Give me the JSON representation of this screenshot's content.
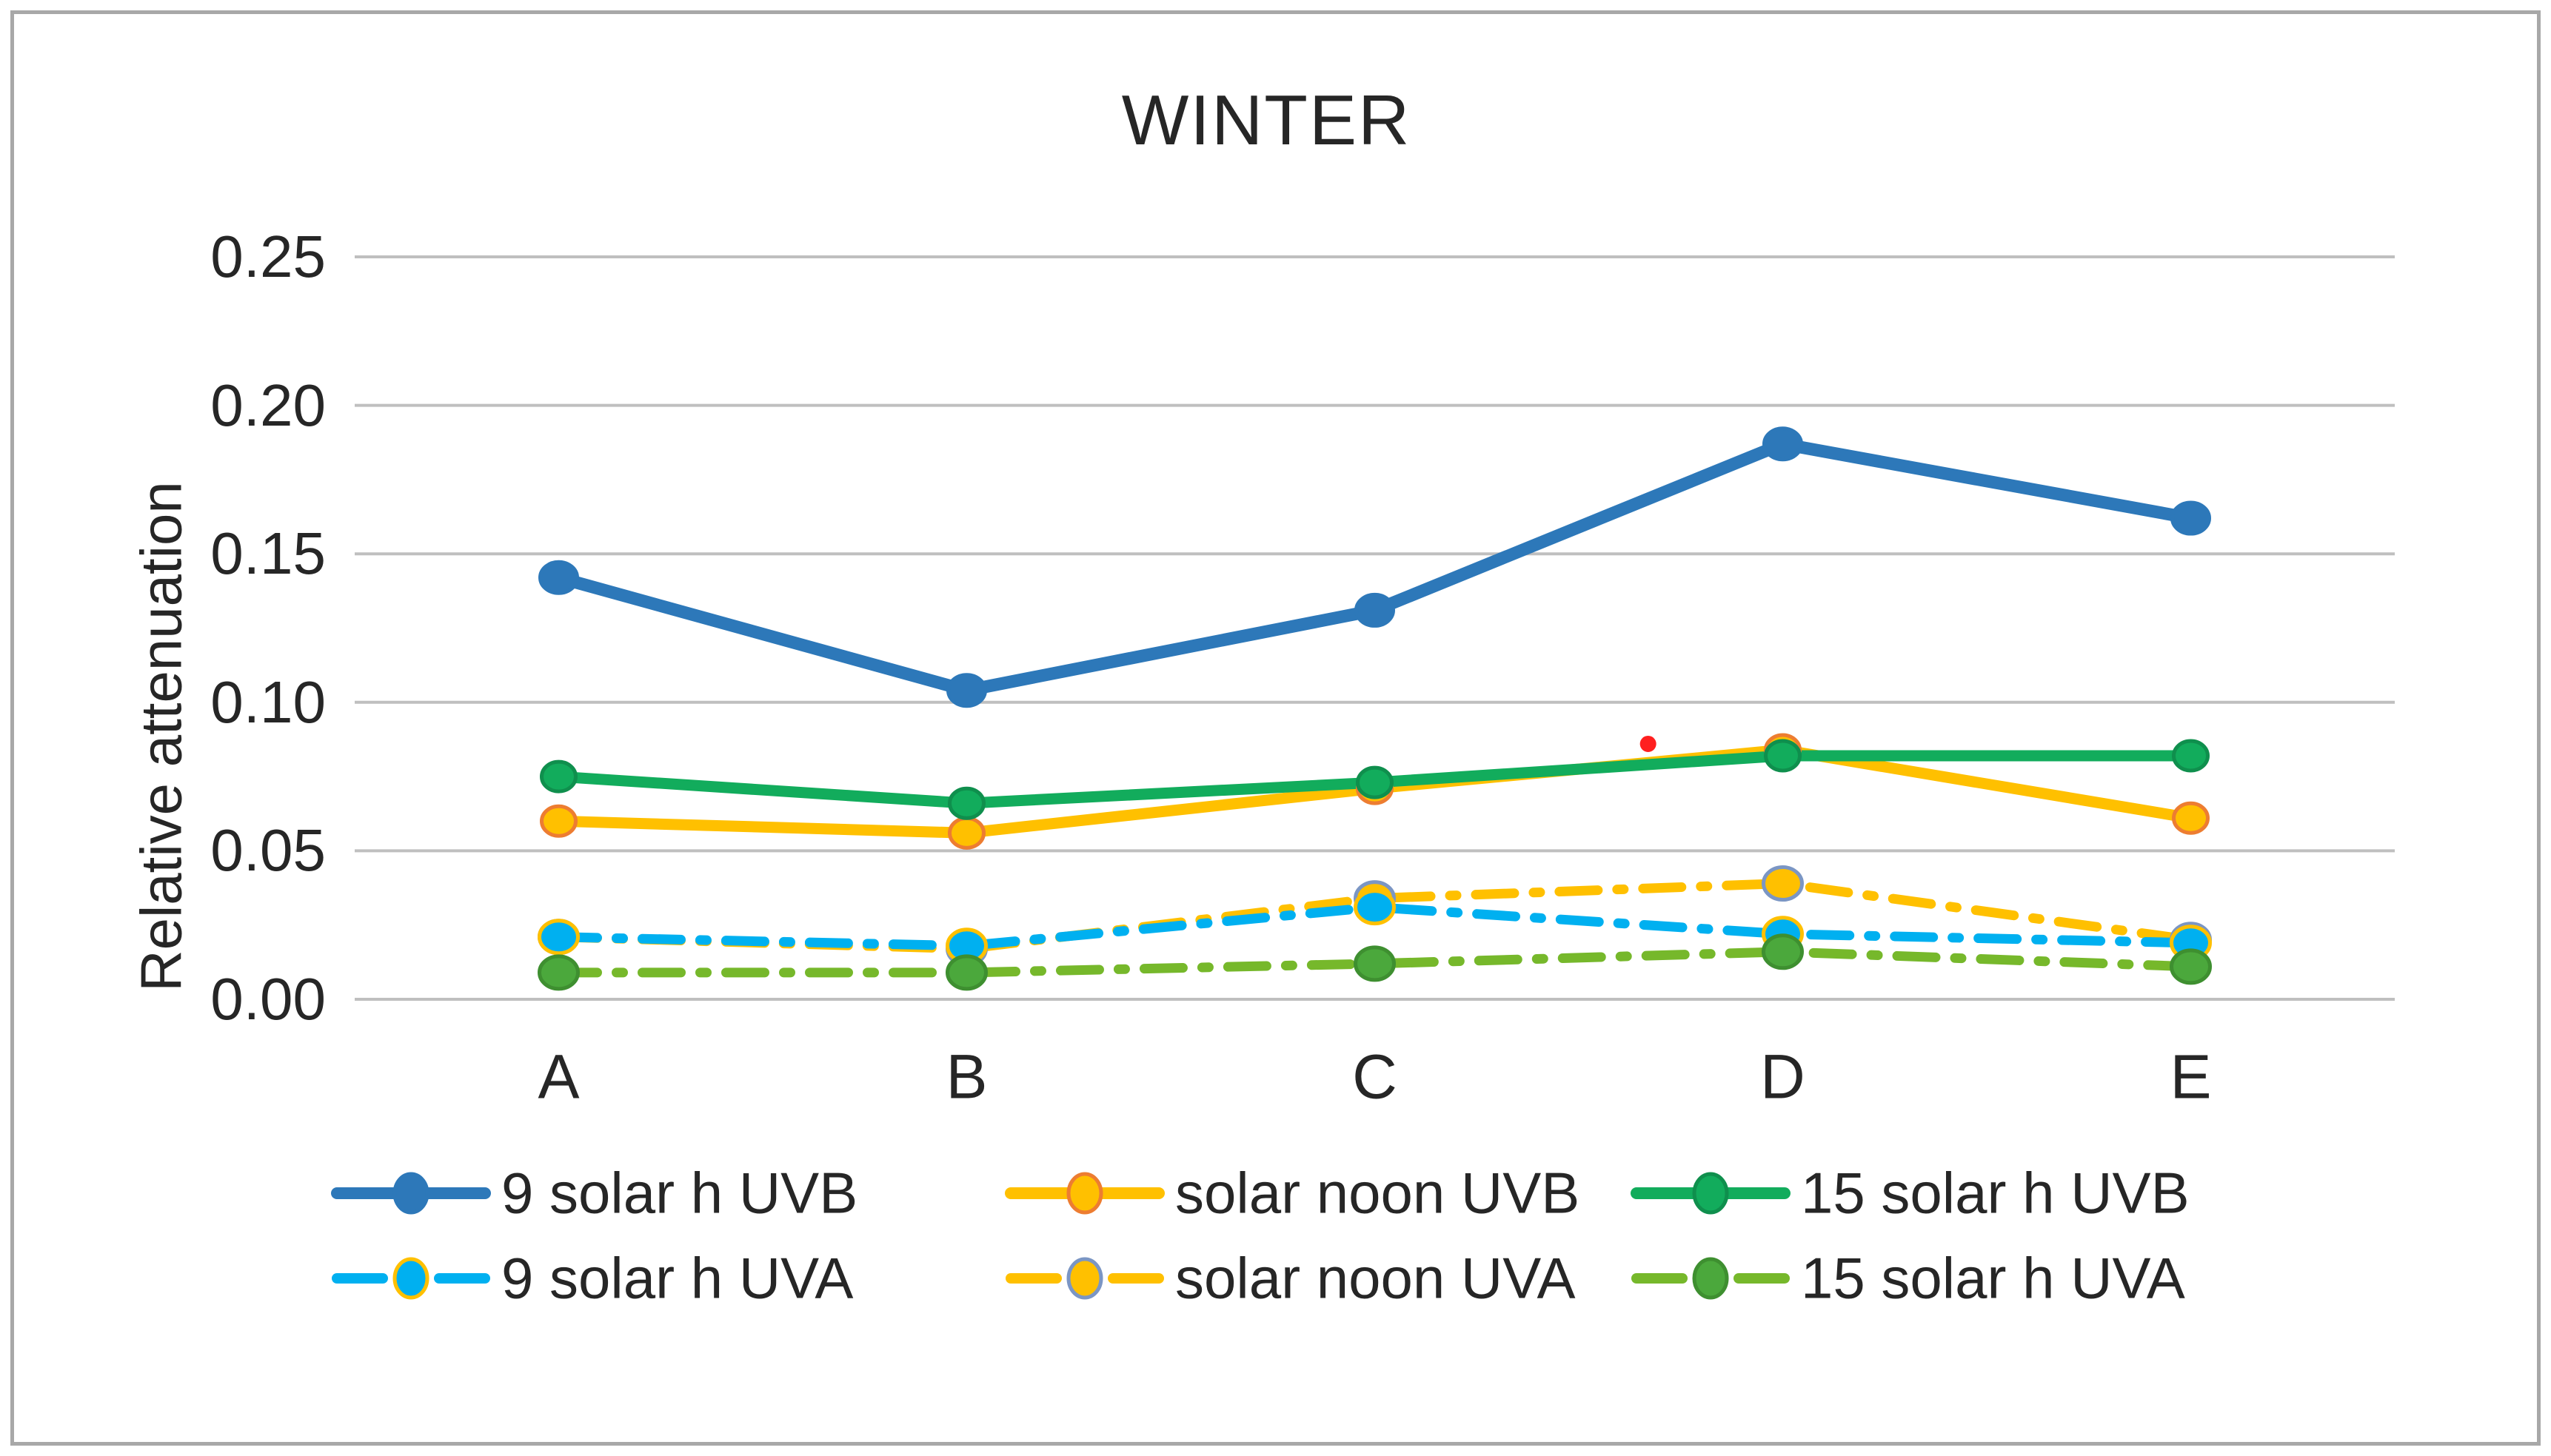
{
  "title": "WINTER",
  "y_axis": {
    "label": "Relative attenuation",
    "tick_labels": [
      "0.00",
      "0.05",
      "0.10",
      "0.15",
      "0.20",
      "0.25"
    ]
  },
  "x_axis": {
    "categories": [
      "A",
      "B",
      "C",
      "D",
      "E"
    ]
  },
  "colors": {
    "background": "#FFFFFF",
    "frame_border": "#A8A8A8",
    "gridline": "#BFBFBF",
    "text": "#262626",
    "annotation_red": "#FF1F1F"
  },
  "chart_data": {
    "type": "line",
    "title": "WINTER",
    "xlabel": "",
    "ylabel": "Relative attenuation",
    "ylim": [
      0,
      0.25
    ],
    "ytick_step": 0.05,
    "grid": true,
    "legend_position": "bottom",
    "categories": [
      "A",
      "B",
      "C",
      "D",
      "E"
    ],
    "series": [
      {
        "name": "9 solar h UVB",
        "values": [
          0.142,
          0.104,
          0.131,
          0.187,
          0.162
        ],
        "line_color": "#2D78B9",
        "marker_fill": "#2D78B9",
        "marker_ring": "#2D78B9",
        "dash": "solid"
      },
      {
        "name": "solar noon UVB",
        "values": [
          0.06,
          0.056,
          0.071,
          0.084,
          0.061
        ],
        "line_color": "#FFC000",
        "marker_fill": "#FFC000",
        "marker_ring": "#ED7D31",
        "dash": "solid"
      },
      {
        "name": "15 solar h UVB",
        "values": [
          0.075,
          0.066,
          0.073,
          0.082,
          0.082
        ],
        "line_color": "#12AC5C",
        "marker_fill": "#12AC5C",
        "marker_ring": "#0F8F4D",
        "dash": "solid"
      },
      {
        "name": "9 solar h UVA",
        "values": [
          0.021,
          0.018,
          0.031,
          0.022,
          0.019
        ],
        "line_color": "#00B0F0",
        "marker_fill": "#00B0F0",
        "marker_ring": "#FFC000",
        "dash": "dash-dot"
      },
      {
        "name": "solar noon UVA",
        "values": [
          0.021,
          0.017,
          0.034,
          0.039,
          0.02
        ],
        "line_color": "#FFC000",
        "marker_fill": "#FFC000",
        "marker_ring": "#7B96C4",
        "dash": "dash-dot"
      },
      {
        "name": "15 solar h UVA",
        "values": [
          0.009,
          0.009,
          0.012,
          0.016,
          0.011
        ],
        "line_color": "#76B82B",
        "marker_fill": "#4BA83C",
        "marker_ring": "#3E8F30",
        "dash": "dash-dot"
      }
    ],
    "annotations": [
      {
        "type": "point",
        "description": "small red dot between C and D above the green line",
        "between_categories": [
          "C",
          "D"
        ],
        "x_offset_fraction": 0.67,
        "value": 0.086,
        "color": "#FF1F1F"
      }
    ]
  }
}
